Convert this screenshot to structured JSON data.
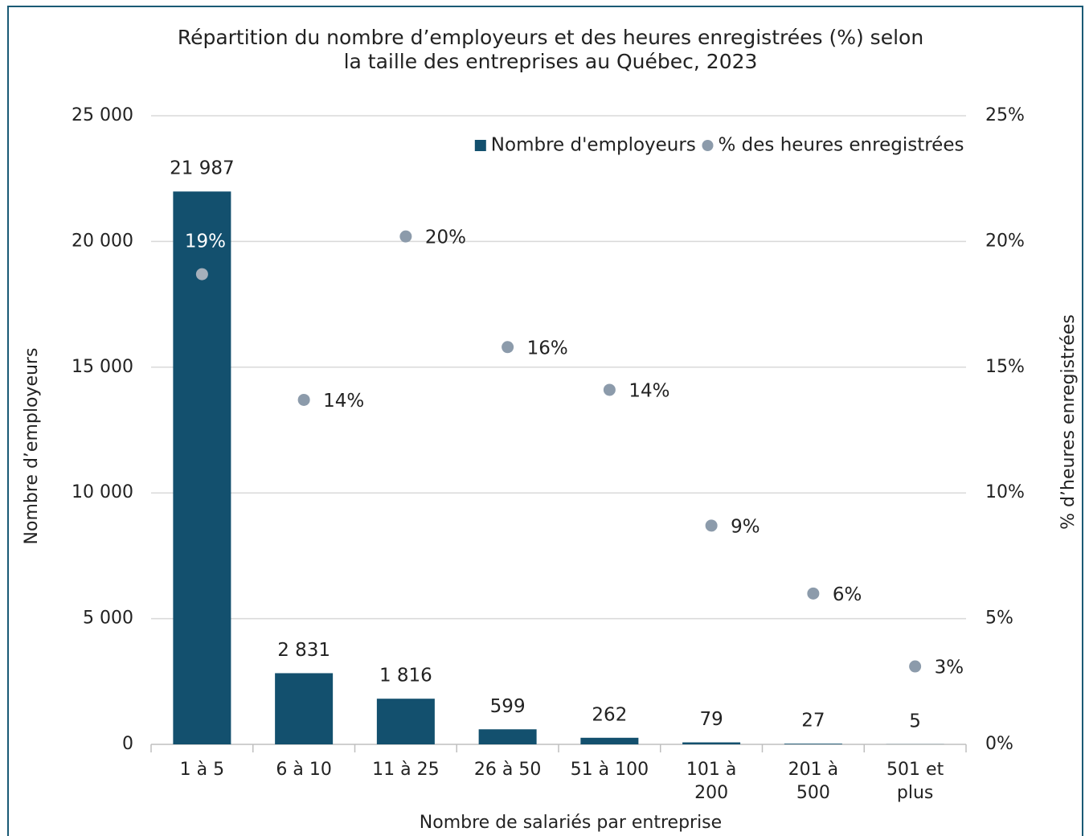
{
  "chart_data": {
    "type": "combo",
    "title": "Répartition du nombre d’employeurs et des heures enregistrées (%) selon\nla taille des entreprises au Québec, 2023",
    "x_label": "Nombre de salariés par entreprise",
    "y_label": "Nombre d’employeurs",
    "y2_label": "% d’heures enregistrées",
    "categories": [
      "1 à 5",
      "6 à 10",
      "11 à 25",
      "26 à 50",
      "51 à 100",
      "101 à\n200",
      "201 à\n500",
      "501 et\nplus"
    ],
    "series": [
      {
        "name": "Nombre d'employeurs",
        "type": "bar",
        "axis": "y",
        "color": "#13506e",
        "values": [
          21987,
          2831,
          1816,
          599,
          262,
          79,
          27,
          5
        ],
        "value_labels": [
          "21 987",
          "2 831",
          "1 816",
          "599",
          "262",
          "79",
          "27",
          "5"
        ]
      },
      {
        "name": "% des heures enregistrées",
        "type": "scatter",
        "axis": "y2",
        "color": "#8c9bab",
        "values": [
          18.7,
          13.7,
          20.2,
          15.8,
          14.1,
          8.7,
          6.0,
          3.1
        ],
        "value_labels": [
          "19%",
          "14%",
          "20%",
          "16%",
          "14%",
          "9%",
          "6%",
          "3%"
        ]
      }
    ],
    "ylim": [
      0,
      25000
    ],
    "yticks": [
      0,
      {
        "value": 5000,
        "label": "5 000"
      },
      {
        "value": 10000,
        "label": "10 000"
      },
      {
        "value": 15000,
        "label": "15 000"
      },
      {
        "value": 20000,
        "label": "20 000"
      },
      {
        "value": 25000,
        "label": "25 000"
      }
    ],
    "y2lim": [
      0,
      25
    ],
    "y2ticks": [
      {
        "value": 0,
        "label": "0%"
      },
      {
        "value": 5,
        "label": "5%"
      },
      {
        "value": 10,
        "label": "10%"
      },
      {
        "value": 15,
        "label": "15%"
      },
      {
        "value": 20,
        "label": "20%"
      },
      {
        "value": 25,
        "label": "25%"
      }
    ],
    "grid": true,
    "legend": "top-right"
  }
}
